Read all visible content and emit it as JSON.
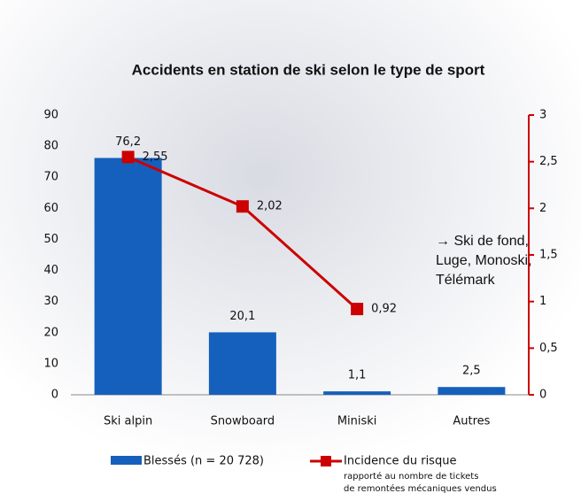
{
  "chart_data": {
    "type": "bar_line",
    "title": "Accidents en station de ski selon le type de sport",
    "categories": [
      "Ski alpin",
      "Snowboard",
      "Miniski",
      "Autres"
    ],
    "series": [
      {
        "name": "Blessés (n = 20 728)",
        "type": "bar",
        "color": "#1560bd",
        "values": [
          76.2,
          20.1,
          1.1,
          2.5
        ],
        "value_labels": [
          "76,2",
          "20,1",
          "1,1",
          "2,5"
        ]
      },
      {
        "name": "Incidence du risque",
        "type": "line",
        "axis": "y2",
        "color": "#cc0000",
        "values": [
          2.55,
          2.02,
          0.92,
          null
        ],
        "value_labels": [
          "2,55",
          "2,02",
          "0,92",
          null
        ]
      }
    ],
    "legend_note": [
      "rapporté au nombre de tickets",
      "de remontées mécaniques vendus"
    ],
    "annotation": "→ Ski de fond, Luge, Monoski, Télémark",
    "ylim": [
      0,
      90
    ],
    "yticks": [
      0,
      10,
      20,
      30,
      40,
      50,
      60,
      70,
      80,
      90
    ],
    "y2lim": [
      0,
      3
    ],
    "y2ticks": [
      0,
      {
        "value": 0.5,
        "label": "0,5"
      },
      1,
      {
        "value": 1.5,
        "label": "1,5"
      },
      2,
      {
        "value": 2.5,
        "label": "2,5"
      },
      3
    ]
  }
}
